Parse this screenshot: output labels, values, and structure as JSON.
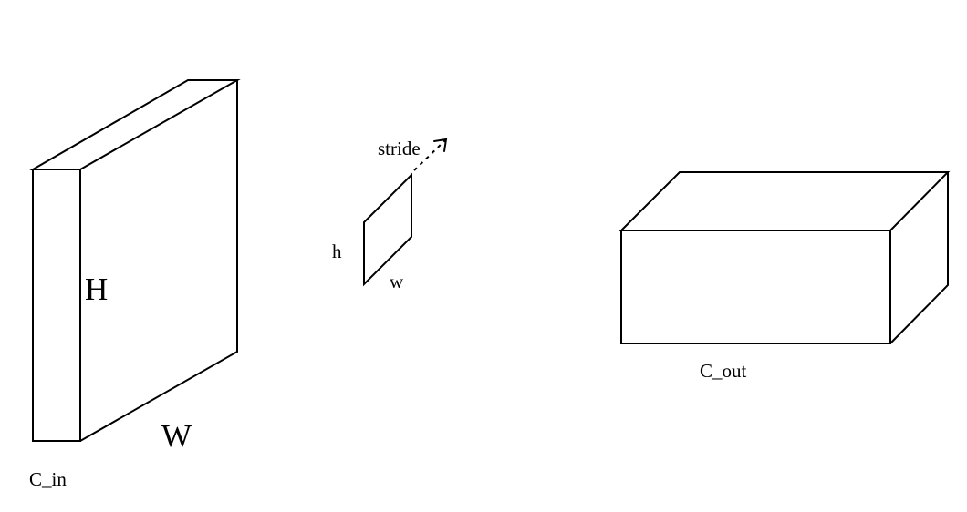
{
  "input_volume": {
    "height_label": "H",
    "width_label": "W",
    "channels_label": "C_in"
  },
  "kernel": {
    "height_label": "h",
    "width_label": "w",
    "stride_label": "stride"
  },
  "output_volume": {
    "channels_label": "C_out"
  },
  "colors": {
    "line": "#000000",
    "background": "#ffffff"
  }
}
